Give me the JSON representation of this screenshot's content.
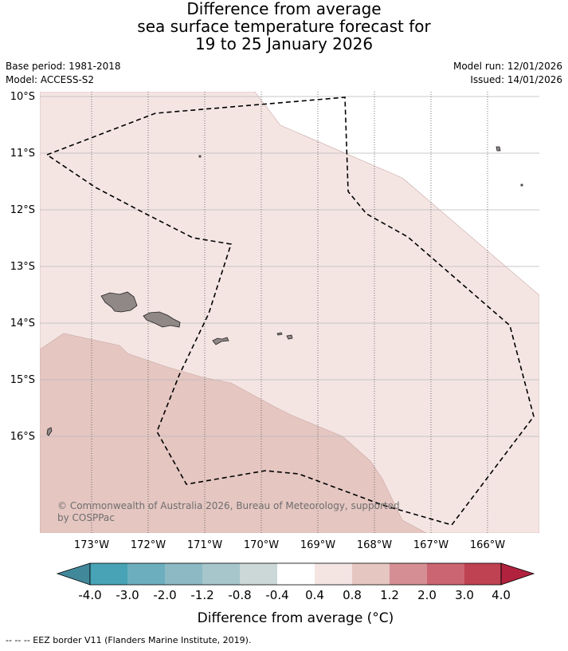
{
  "title_lines": [
    "Difference from average",
    "sea surface temperature forecast for",
    "19 to 25 January 2026"
  ],
  "meta": {
    "base_period": "Base period: 1981-2018",
    "model": "Model: ACCESS-S2",
    "model_run": "Model run: 12/01/2026",
    "issued": "Issued: 14/01/2026"
  },
  "map": {
    "lat_labels": [
      "10°S",
      "11°S",
      "12°S",
      "13°S",
      "14°S",
      "15°S",
      "16°S"
    ],
    "lon_labels": [
      "173°W",
      "172°W",
      "171°W",
      "170°W",
      "169°W",
      "168°W",
      "167°W",
      "166°W"
    ],
    "copyright_lines": [
      "© Commonwealth of Australia 2026, Bureau of Meteorology, supported",
      "by COSPPac"
    ],
    "colors": {
      "land": "#8f8886",
      "anomaly_0_4_to_0_8": "#f4e5e3",
      "anomaly_0_8_to_1_2": "#e5c6c1",
      "ocean_neutral": "#ffffff"
    }
  },
  "colorbar": {
    "tick_labels": [
      "-4.0",
      "-3.0",
      "-2.0",
      "-1.2",
      "-0.8",
      "-0.4",
      "0.4",
      "0.8",
      "1.2",
      "2.0",
      "3.0",
      "4.0"
    ],
    "colors": [
      "#41889a",
      "#47a3b5",
      "#6daebe",
      "#8cb9c4",
      "#a7c6cb",
      "#ccd7d8",
      "#ffffff",
      "#f4e5e3",
      "#e5c6c1",
      "#d68e95",
      "#cc6572",
      "#bf4252",
      "#b0223d"
    ],
    "title": "Difference from average (°C)"
  },
  "footer": "--  --  -- EEZ border V11 (Flanders Marine Institute, 2019)."
}
